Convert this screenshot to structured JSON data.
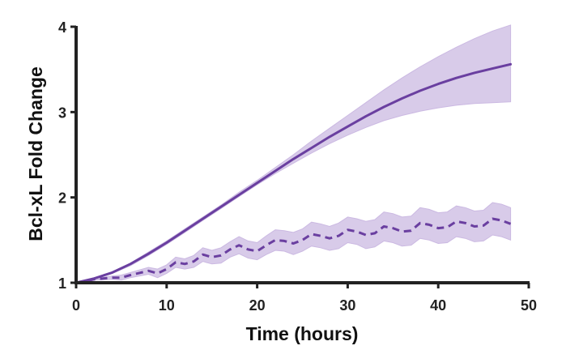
{
  "chart_data": {
    "type": "line",
    "title": "",
    "xlabel": "Time (hours)",
    "ylabel": "Bcl-xL Fold Change",
    "xlim": [
      0,
      50
    ],
    "ylim": [
      1,
      4
    ],
    "xticks": [
      "0",
      "10",
      "20",
      "30",
      "40",
      "50"
    ],
    "yticks": [
      "1",
      "2",
      "3",
      "4"
    ],
    "grid": false,
    "legend": "none",
    "colors": {
      "line": "#6a3fa0",
      "band": "#cbb9e2",
      "axis": "#222222"
    },
    "series": [
      {
        "style": "solid",
        "x": [
          0,
          2,
          4,
          6,
          8,
          10,
          12,
          14,
          16,
          18,
          20,
          22,
          24,
          26,
          28,
          30,
          32,
          34,
          36,
          38,
          40,
          42,
          44,
          46,
          48
        ],
        "y": [
          1.0,
          1.05,
          1.12,
          1.22,
          1.34,
          1.47,
          1.61,
          1.75,
          1.89,
          2.03,
          2.17,
          2.31,
          2.45,
          2.58,
          2.71,
          2.83,
          2.95,
          3.06,
          3.16,
          3.25,
          3.33,
          3.4,
          3.46,
          3.51,
          3.56
        ],
        "lower": [
          1.0,
          1.04,
          1.11,
          1.2,
          1.32,
          1.45,
          1.59,
          1.73,
          1.87,
          2.01,
          2.15,
          2.28,
          2.4,
          2.52,
          2.63,
          2.73,
          2.82,
          2.9,
          2.96,
          3.01,
          3.05,
          3.08,
          3.1,
          3.11,
          3.12
        ],
        "upper": [
          1.0,
          1.06,
          1.13,
          1.23,
          1.36,
          1.49,
          1.63,
          1.77,
          1.91,
          2.06,
          2.2,
          2.35,
          2.5,
          2.66,
          2.81,
          2.96,
          3.11,
          3.26,
          3.4,
          3.53,
          3.65,
          3.76,
          3.86,
          3.95,
          4.02
        ]
      },
      {
        "style": "dashed",
        "x": [
          0,
          2,
          4,
          5,
          6,
          8,
          9,
          10,
          11,
          12,
          13,
          14,
          15,
          16,
          17,
          18,
          19,
          20,
          21,
          22,
          23,
          24,
          25,
          26,
          27,
          28,
          29,
          30,
          31,
          32,
          33,
          34,
          35,
          36,
          37,
          38,
          39,
          40,
          41,
          42,
          43,
          44,
          45,
          46,
          47,
          48
        ],
        "y": [
          1.0,
          1.04,
          1.06,
          1.06,
          1.09,
          1.14,
          1.11,
          1.16,
          1.24,
          1.22,
          1.25,
          1.33,
          1.3,
          1.32,
          1.39,
          1.44,
          1.39,
          1.37,
          1.44,
          1.5,
          1.49,
          1.46,
          1.5,
          1.57,
          1.55,
          1.52,
          1.55,
          1.62,
          1.6,
          1.56,
          1.58,
          1.66,
          1.64,
          1.6,
          1.61,
          1.7,
          1.68,
          1.64,
          1.65,
          1.72,
          1.7,
          1.66,
          1.67,
          1.75,
          1.73,
          1.69
        ],
        "lower": [
          1.0,
          1.03,
          1.04,
          1.03,
          1.06,
          1.1,
          1.06,
          1.11,
          1.18,
          1.16,
          1.18,
          1.25,
          1.22,
          1.23,
          1.3,
          1.34,
          1.29,
          1.27,
          1.33,
          1.38,
          1.37,
          1.33,
          1.37,
          1.43,
          1.41,
          1.38,
          1.4,
          1.47,
          1.45,
          1.4,
          1.42,
          1.49,
          1.47,
          1.43,
          1.44,
          1.52,
          1.5,
          1.46,
          1.47,
          1.54,
          1.52,
          1.48,
          1.49,
          1.56,
          1.54,
          1.5
        ],
        "upper": [
          1.0,
          1.05,
          1.08,
          1.09,
          1.12,
          1.18,
          1.16,
          1.21,
          1.3,
          1.28,
          1.32,
          1.41,
          1.38,
          1.41,
          1.48,
          1.54,
          1.49,
          1.47,
          1.55,
          1.62,
          1.61,
          1.59,
          1.63,
          1.71,
          1.69,
          1.66,
          1.7,
          1.77,
          1.75,
          1.72,
          1.74,
          1.83,
          1.81,
          1.77,
          1.78,
          1.88,
          1.86,
          1.82,
          1.83,
          1.9,
          1.88,
          1.84,
          1.85,
          1.94,
          1.92,
          1.88
        ]
      }
    ]
  }
}
